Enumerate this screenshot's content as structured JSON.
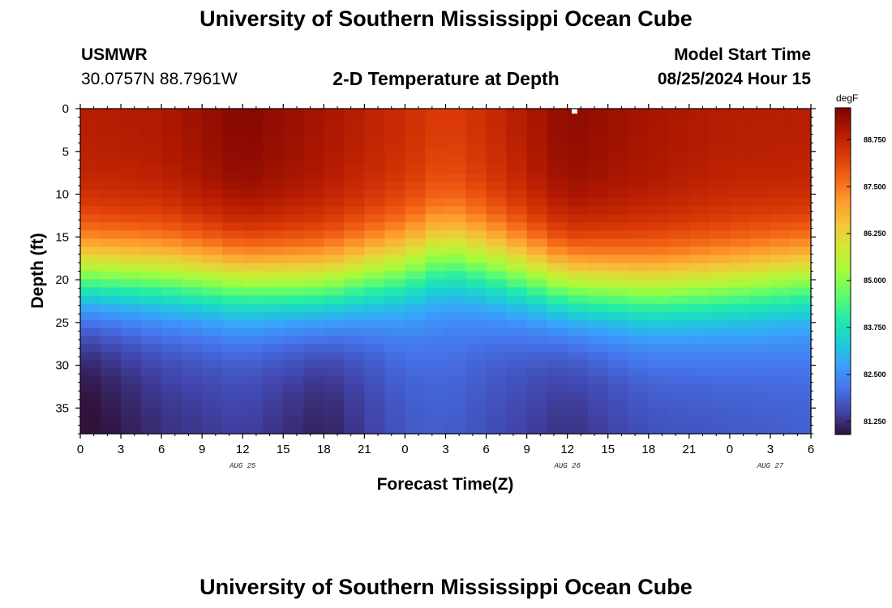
{
  "header": {
    "title_top": "University of Southern Mississippi Ocean Cube",
    "title_bottom": "University of Southern Mississippi Ocean Cube",
    "station_id": "USMWR",
    "station_coords": "30.0757N  88.7961W",
    "plot_title": "2-D Temperature at Depth",
    "model_start_label": "Model Start Time",
    "model_start_value": "08/25/2024 Hour 15"
  },
  "chart_data": {
    "type": "heatmap",
    "title": "2-D Temperature at Depth",
    "xlabel": "Forecast Time(Z)",
    "ylabel": "Depth (ft)",
    "units": "degF",
    "x_hours_range": [
      0,
      54
    ],
    "x_tick_labels": [
      "0",
      "3",
      "6",
      "9",
      "12",
      "15",
      "18",
      "21",
      "0",
      "3",
      "6",
      "9",
      "12",
      "15",
      "18",
      "21",
      "0",
      "3",
      "6"
    ],
    "x_date_labels": [
      {
        "label": "AUG 25",
        "hour": 12
      },
      {
        "label": "AUG 26",
        "hour": 36
      },
      {
        "label": "AUG 27",
        "hour": 51
      }
    ],
    "y_depth_range": [
      0,
      38
    ],
    "y_tick_values": [
      0,
      5,
      10,
      15,
      20,
      25,
      30,
      35
    ],
    "y_tick_labels": [
      "0",
      "5",
      "10",
      "15",
      "20",
      "25",
      "30",
      "35"
    ],
    "value_range": [
      80.9,
      89.6
    ],
    "colorbar_ticks": [
      81.25,
      82.5,
      83.75,
      85.0,
      86.25,
      87.5,
      88.75
    ],
    "colorbar_tick_labels": [
      "81.250",
      "82.500",
      "83.750",
      "85.000",
      "86.250",
      "87.500",
      "88.750"
    ],
    "colormap": [
      "#30123b",
      "#4145ab",
      "#4675ed",
      "#39a2fc",
      "#1bcfd4",
      "#24eca6",
      "#61fc6c",
      "#a4fc3b",
      "#d1e834",
      "#f3c63a",
      "#fe9b2d",
      "#f36315",
      "#d93806",
      "#b11901",
      "#7a0402"
    ],
    "field_samples": {
      "hours": [
        0,
        6,
        12,
        18,
        24,
        27,
        30,
        36,
        42,
        48,
        54
      ],
      "thermocline_depth_ft": [
        19.5,
        19.5,
        20.0,
        20.5,
        18.5,
        17.0,
        18.0,
        20.5,
        21.0,
        20.5,
        19.5
      ],
      "surface_temp_degF": [
        88.9,
        89.0,
        89.5,
        89.1,
        88.6,
        88.3,
        88.6,
        89.4,
        89.1,
        88.9,
        88.9
      ],
      "bottom_temp_degF": [
        81.1,
        81.6,
        81.8,
        81.4,
        82.1,
        82.2,
        82.0,
        81.6,
        82.0,
        82.1,
        82.2
      ]
    },
    "missing_cell": {
      "hour": 36.5,
      "depth_ft": 0.3
    }
  }
}
